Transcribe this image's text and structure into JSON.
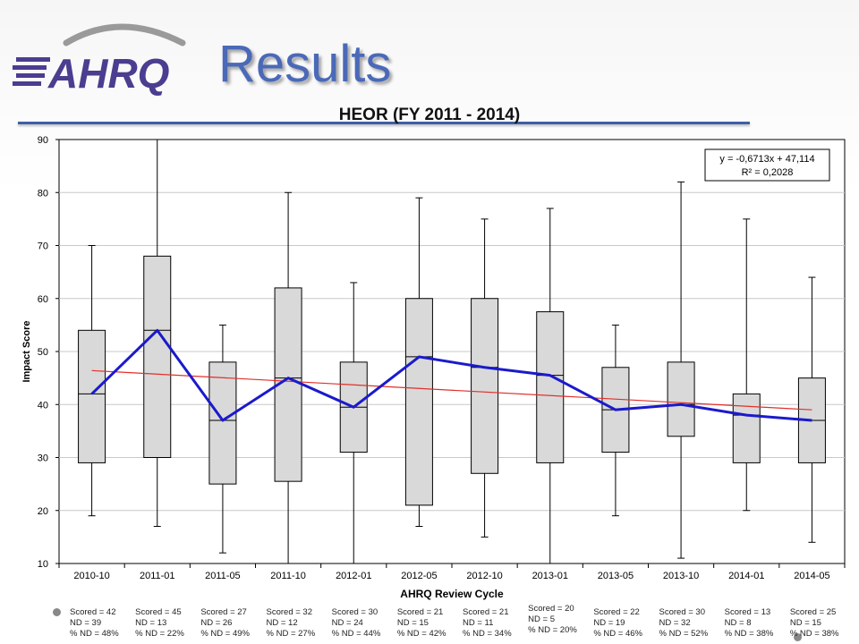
{
  "slide": {
    "logo_text": "AHRQ",
    "title": "Results",
    "colors": {
      "title": "#4a69b8",
      "rule": "#3d5fa8",
      "logo": "#4b3d8f"
    }
  },
  "chart_data": {
    "type": "box",
    "title": "HEOR (FY 2011 - 2014)",
    "xlabel": "AHRQ Review Cycle",
    "ylabel": "Impact Score",
    "ylim": [
      10,
      90
    ],
    "yticks": [
      10,
      20,
      30,
      40,
      50,
      60,
      70,
      80,
      90
    ],
    "grid": true,
    "categories": [
      "2010-10",
      "2011-01",
      "2011-05",
      "2011-10",
      "2012-01",
      "2012-05",
      "2012-10",
      "2013-01",
      "2013-05",
      "2013-10",
      "2014-01",
      "2014-05"
    ],
    "boxes": [
      {
        "min": 19,
        "q1": 29,
        "median": 42,
        "q3": 54,
        "max": 70
      },
      {
        "min": 17,
        "q1": 30,
        "median": 54,
        "q3": 68,
        "max": 90
      },
      {
        "min": 12,
        "q1": 25,
        "median": 37,
        "q3": 48,
        "max": 55
      },
      {
        "min": 10,
        "q1": 25.5,
        "median": 45,
        "q3": 62,
        "max": 80
      },
      {
        "min": 10,
        "q1": 31,
        "median": 39.5,
        "q3": 48,
        "max": 63
      },
      {
        "min": 17,
        "q1": 21,
        "median": 49,
        "q3": 60,
        "max": 79
      },
      {
        "min": 15,
        "q1": 27,
        "median": 47,
        "q3": 60,
        "max": 75
      },
      {
        "min": 10,
        "q1": 29,
        "median": 45.5,
        "q3": 57.5,
        "max": 77
      },
      {
        "min": 19,
        "q1": 31,
        "median": 39,
        "q3": 47,
        "max": 55
      },
      {
        "min": 11,
        "q1": 34,
        "median": 40,
        "q3": 48,
        "max": 82
      },
      {
        "min": 20,
        "q1": 29,
        "median": 38,
        "q3": 42,
        "max": 75
      },
      {
        "min": 14,
        "q1": 29,
        "median": 37,
        "q3": 45,
        "max": 64
      }
    ],
    "median_line": {
      "values": [
        42,
        54,
        37,
        45,
        39.5,
        49,
        47,
        45.5,
        39,
        40,
        38,
        37
      ],
      "color": "#1a1acc"
    },
    "trendline": {
      "start": 46.4,
      "end": 39.0,
      "color": "#e0302a"
    },
    "annotation": [
      "y = -0,6713x + 47,114",
      "R² = 0,2028"
    ],
    "colors": {
      "box_fill": "#d9d9d9",
      "box_stroke": "#000000",
      "grid": "#c8c8c8"
    }
  },
  "stats": [
    {
      "scored": "Scored = 42",
      "nd": "ND = 39",
      "pct": "% ND = 48%"
    },
    {
      "scored": "Scored = 45",
      "nd": "ND = 13",
      "pct": "% ND = 22%"
    },
    {
      "scored": "Scored = 27",
      "nd": "ND = 26",
      "pct": "% ND = 49%"
    },
    {
      "scored": "Scored = 32",
      "nd": "ND = 12",
      "pct": "% ND = 27%"
    },
    {
      "scored": "Scored = 30",
      "nd": "ND = 24",
      "pct": "% ND = 44%"
    },
    {
      "scored": "Scored = 21",
      "nd": "ND = 15",
      "pct": "% ND = 42%"
    },
    {
      "scored": "Scored = 21",
      "nd": "ND = 11",
      "pct": "% ND = 34%"
    },
    {
      "scored": "Scored = 20",
      "nd": "ND = 5",
      "pct": "% ND = 20%"
    },
    {
      "scored": "Scored = 22",
      "nd": "ND = 19",
      "pct": "% ND = 46%"
    },
    {
      "scored": "Scored = 30",
      "nd": "ND = 32",
      "pct": "% ND = 52%"
    },
    {
      "scored": "Scored = 13",
      "nd": "ND = 8",
      "pct": "% ND = 38%"
    },
    {
      "scored": "Scored = 25",
      "nd": "ND = 15",
      "pct": "% ND = 38%"
    }
  ]
}
